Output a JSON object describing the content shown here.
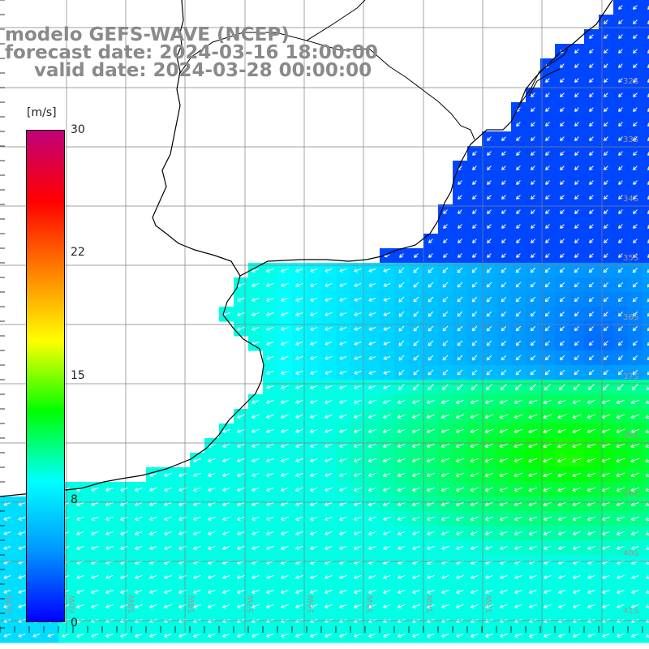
{
  "title": {
    "line1": "modelo GEFS-WAVE (NCEP)",
    "line2": "forecast date: 2024-03-16 18:00:00",
    "line3": "valid date: 2024-03-28 00:00:00"
  },
  "colorbar": {
    "unit": "[m/s]",
    "ticks": [
      "30",
      "22",
      "15",
      "8",
      "0"
    ],
    "tick_values": [
      30,
      22,
      15,
      8,
      0
    ],
    "range": [
      0,
      30
    ],
    "colors": [
      "#0000ff",
      "#0096ff",
      "#00ffff",
      "#00ff00",
      "#ffff00",
      "#ff8000",
      "#ff0000",
      "#c0007a"
    ]
  },
  "grid": {
    "lat_labels": [
      "32S",
      "33S",
      "34S",
      "35S",
      "36S",
      "37S",
      "38S",
      "39S",
      "40S",
      "41S"
    ],
    "lon_labels": [
      "61W",
      "60W",
      "59W",
      "58W",
      "57W",
      "56W",
      "55W",
      "54W",
      "53W"
    ]
  },
  "map_colors": {
    "land": "#ffffff",
    "coast": "#000000",
    "grid": "#808080",
    "arrow": "#ffffff"
  }
}
